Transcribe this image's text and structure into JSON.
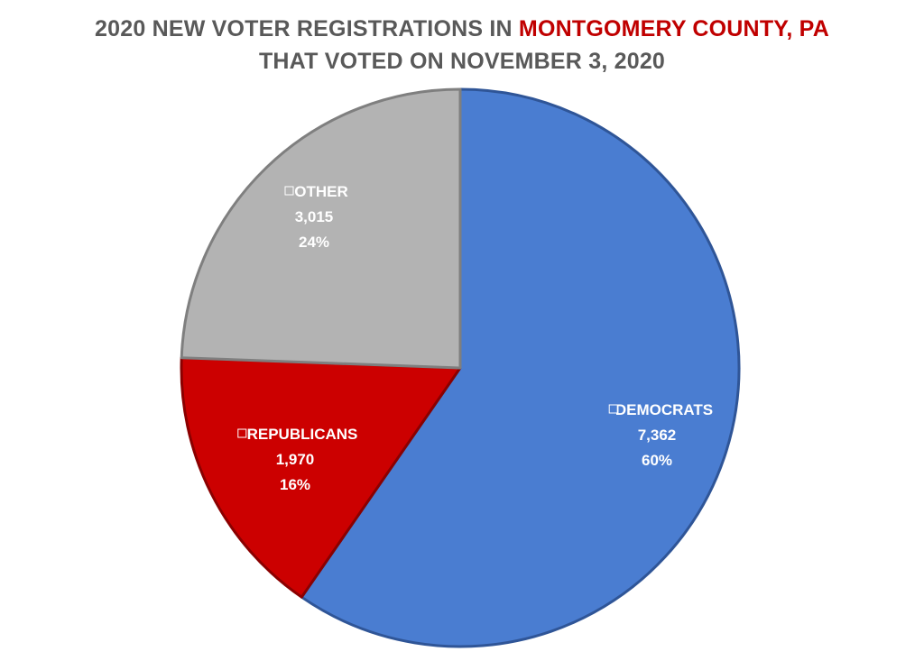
{
  "title": {
    "line1_prefix": "2020 NEW VOTER REGISTRATIONS IN ",
    "line1_highlight": "MONTGOMERY COUNTY, PA",
    "line2": "THAT VOTED ON NOVEMBER 3, 2020",
    "highlight_color": "#c00000",
    "text_color": "#595959"
  },
  "chart_data": {
    "type": "pie",
    "title": "2020 NEW VOTER REGISTRATIONS IN MONTGOMERY COUNTY, PA THAT VOTED ON NOVEMBER 3, 2020",
    "start_angle_deg": 0,
    "direction": "clockwise",
    "slices": [
      {
        "label": "DEMOCRATS",
        "value": 7362,
        "value_text": "7,362",
        "percent_text": "60%",
        "color": "#4a7dd1",
        "edge_color": "#2f5597"
      },
      {
        "label": "REPUBLICANS",
        "value": 1970,
        "value_text": "1,970",
        "percent_text": "16%",
        "color": "#cc0000",
        "edge_color": "#8b0000"
      },
      {
        "label": "OTHER",
        "value": 3015,
        "value_text": "3,015",
        "percent_text": "24%",
        "color": "#b3b3b3",
        "edge_color": "#7f7f7f"
      }
    ]
  }
}
